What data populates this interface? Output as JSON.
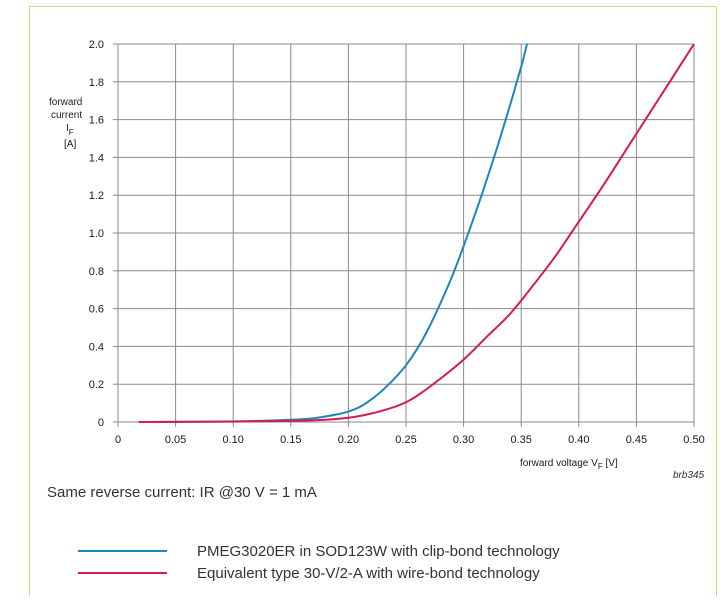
{
  "note": "Same reverse current: IR @30 V = 1 mA",
  "figure_code": "brb345",
  "chart_data": {
    "type": "line",
    "ylabel_lines": [
      "forward",
      "current"
    ],
    "ylabel_symbol": "I",
    "ylabel_sub": "F",
    "ylabel_unit": "[A]",
    "xlabel_prefix": "forward voltage V",
    "xlabel_sub": "F",
    "xlabel_suffix": " [V]",
    "xlim": [
      0,
      0.5
    ],
    "ylim": [
      0,
      2.0
    ],
    "x_ticks": [
      "0",
      "0.05",
      "0.10",
      "0.15",
      "0.20",
      "0.25",
      "0.30",
      "0.35",
      "0.40",
      "0.45",
      "0.50"
    ],
    "y_ticks": [
      "0",
      "0.2",
      "0.4",
      "0.6",
      "0.8",
      "1.0",
      "1.2",
      "1.4",
      "1.6",
      "1.8",
      "2.0"
    ],
    "grid": true,
    "series": [
      {
        "name": "PMEG3020ER in SOD123W with clip-bond technology",
        "color": "#1f86b8",
        "x": [
          0.035,
          0.1,
          0.15,
          0.17,
          0.19,
          0.2,
          0.21,
          0.22,
          0.23,
          0.24,
          0.25,
          0.26,
          0.27,
          0.28,
          0.29,
          0.3,
          0.31,
          0.32,
          0.33,
          0.34,
          0.35,
          0.355
        ],
        "y": [
          0.0,
          0.003,
          0.012,
          0.02,
          0.04,
          0.055,
          0.08,
          0.12,
          0.17,
          0.23,
          0.3,
          0.39,
          0.5,
          0.63,
          0.77,
          0.93,
          1.1,
          1.28,
          1.47,
          1.67,
          1.88,
          2.0
        ]
      },
      {
        "name": "Equivalent type 30-V/2-A with wire-bond technology",
        "color": "#d6195b",
        "x": [
          0.018,
          0.1,
          0.15,
          0.18,
          0.2,
          0.22,
          0.24,
          0.25,
          0.26,
          0.28,
          0.3,
          0.32,
          0.34,
          0.36,
          0.38,
          0.4,
          0.42,
          0.44,
          0.46,
          0.48,
          0.5
        ],
        "y": [
          0.0,
          0.002,
          0.006,
          0.012,
          0.022,
          0.045,
          0.08,
          0.105,
          0.14,
          0.23,
          0.33,
          0.45,
          0.57,
          0.72,
          0.88,
          1.06,
          1.24,
          1.43,
          1.62,
          1.81,
          2.0
        ]
      }
    ]
  }
}
